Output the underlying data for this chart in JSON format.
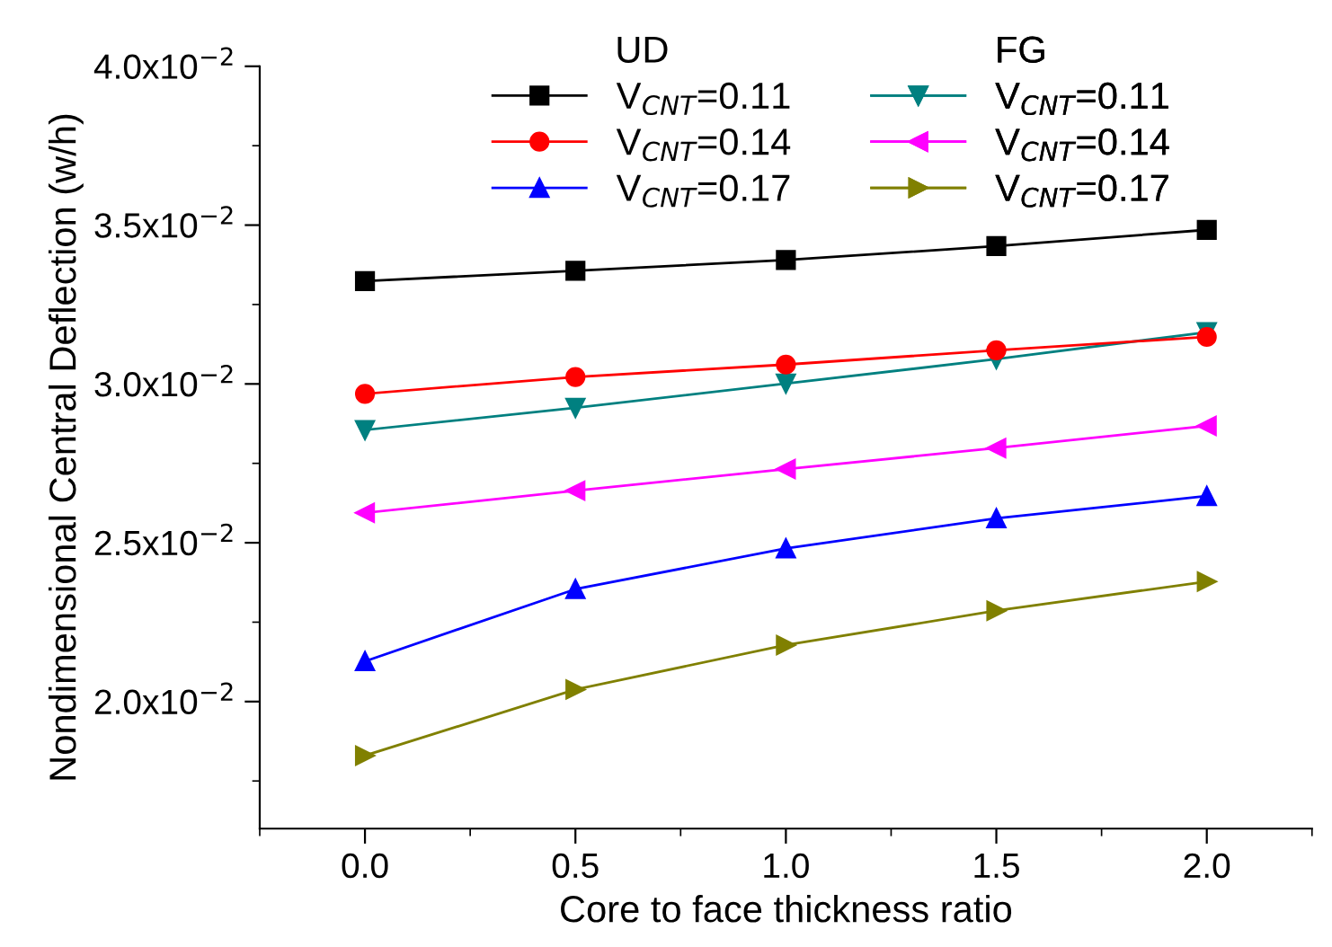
{
  "chart_data": {
    "type": "line",
    "xlabel": "Core to face thickness ratio",
    "ylabel": "Nondimensional Central Deflection (w/h)",
    "x": [
      0.0,
      0.5,
      1.0,
      1.5,
      2.0
    ],
    "legend": "top",
    "legend_title": [
      "UD",
      "FG"
    ],
    "series": [
      {
        "name": "V$_{CNT}$=0.11",
        "color": "#000000",
        "marker": "square",
        "values": [
          0.03324,
          0.03356,
          0.0339,
          0.03434,
          0.03485
        ]
      },
      {
        "name": "V$_{CNT}$=0.14",
        "color": "#ff0000",
        "marker": "circle",
        "values": [
          0.02969,
          0.03022,
          0.03061,
          0.03106,
          0.03148
        ]
      },
      {
        "name": "V$_{CNT}$=0.17",
        "color": "#0000ff",
        "marker": "triangle",
        "values": [
          0.02127,
          0.02354,
          0.02482,
          0.02577,
          0.02647
        ]
      },
      {
        "name": "V$_{CNT}$=0.11",
        "color": "#008080",
        "marker": "triangle_down",
        "values": [
          0.02855,
          0.02925,
          0.03001,
          0.03078,
          0.03163
        ]
      },
      {
        "name": "V$_{CNT}$=0.14",
        "color": "#ff00ff",
        "marker": "triangle_left",
        "values": [
          0.02594,
          0.02664,
          0.02732,
          0.02798,
          0.02868
        ]
      },
      {
        "name": "V$_{CNT}$=0.17",
        "color": "#808000",
        "marker": "triangle_right",
        "values": [
          0.0183,
          0.02038,
          0.02178,
          0.02286,
          0.02378
        ]
      }
    ],
    "xlim": [
      -0.25,
      2.25
    ],
    "xticks": [
      {
        "value": -0.25,
        "label": null
      },
      {
        "value": 0,
        "label": "0.0"
      },
      {
        "value": 0.25,
        "label": null
      },
      0.5,
      {
        "value": 0.75,
        "label": null
      },
      {
        "value": 1,
        "label": "1.0"
      },
      {
        "value": 1.25,
        "label": null
      },
      1.5,
      {
        "value": 1.75,
        "label": null
      },
      {
        "value": 2,
        "label": "2.0"
      },
      {
        "value": 2.25,
        "label": null
      }
    ],
    "ylim": [
      0.016,
      0.04
    ],
    "yticks": [
      {
        "value": 0.0175,
        "label": null
      },
      {
        "value": 0.02,
        "label": "2.0x10$^{−2}$"
      },
      {
        "value": 0.0225,
        "label": null
      },
      {
        "value": 0.025,
        "label": "2.5x10$^{−2}$"
      },
      {
        "value": 0.0275,
        "label": null
      },
      {
        "value": 0.03,
        "label": "3.0x10$^{−2}$"
      },
      {
        "value": 0.0325,
        "label": null
      },
      {
        "value": 0.035,
        "label": "3.5x10$^{−2}$"
      },
      {
        "value": 0.0375,
        "label": null
      },
      {
        "value": 0.04,
        "label": "4.0x10$^{−2}$"
      }
    ],
    "grid": false
  }
}
